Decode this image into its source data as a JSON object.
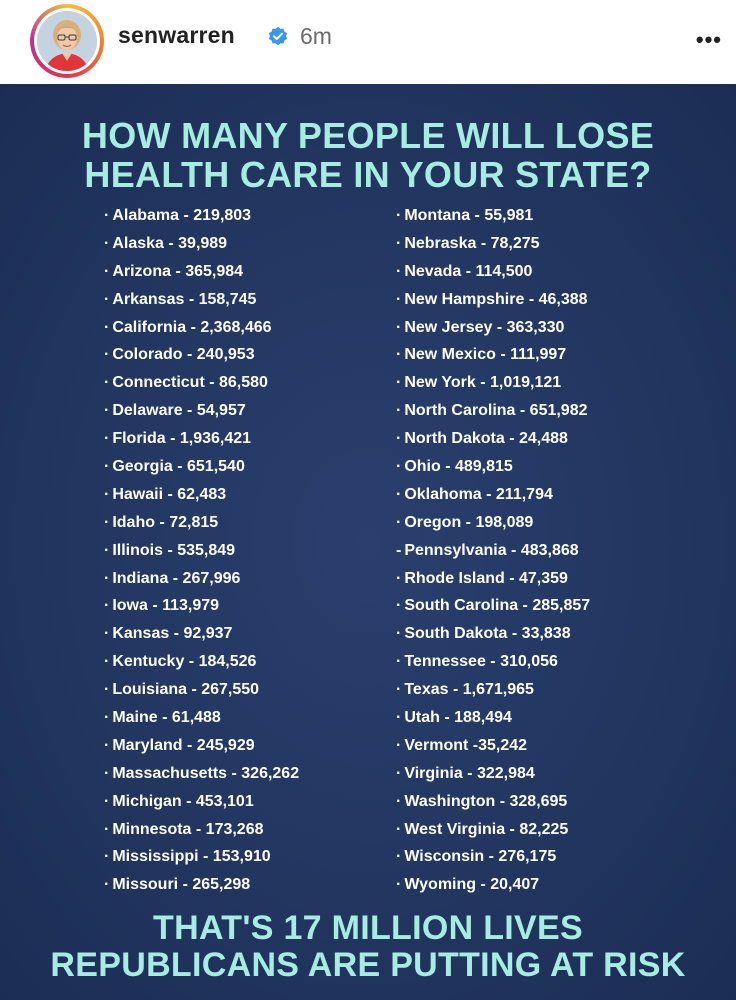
{
  "post": {
    "username": "senwarren",
    "time_ago": "6m",
    "more_label": "•••",
    "icons": {
      "avatar": "profile-photo",
      "verified": "verified-badge-icon",
      "more": "more-options-icon"
    }
  },
  "graphic": {
    "headline_line1": "HOW MANY PEOPLE WILL LOSE",
    "headline_line2": "HEALTH CARE IN YOUR STATE?",
    "footer_line1": "THAT'S 17 MILLION LIVES",
    "footer_line2": "REPUBLICANS ARE PUTTING AT RISK",
    "colors": {
      "background": "#223660",
      "accent_text": "#a7ece0",
      "list_text": "#ffffff"
    },
    "left_column": [
      "Alabama - 219,803",
      "Alaska - 39,989",
      "Arizona - 365,984",
      "Arkansas - 158,745",
      "California - 2,368,466",
      "Colorado - 240,953",
      "Connecticut - 86,580",
      "Delaware - 54,957",
      "Florida - 1,936,421",
      "Georgia - 651,540",
      "Hawaii - 62,483",
      "Idaho - 72,815",
      "Illinois - 535,849",
      "Indiana - 267,996",
      "Iowa - 113,979",
      "Kansas - 92,937",
      "Kentucky - 184,526",
      "Louisiana - 267,550",
      "Maine - 61,488",
      "Maryland - 245,929",
      "Massachusetts - 326,262",
      "Michigan - 453,101",
      "Minnesota - 173,268",
      "Mississippi - 153,910",
      "Missouri - 265,298"
    ],
    "right_column": [
      "Montana - 55,981",
      "Nebraska - 78,275",
      "Nevada - 114,500",
      "New Hampshire - 46,388",
      "New Jersey - 363,330",
      "New Mexico - 111,997",
      "New York - 1,019,121",
      "North Carolina - 651,982",
      "North Dakota - 24,488",
      "Ohio - 489,815",
      "Oklahoma - 211,794",
      "Oregon - 198,089",
      "Pennsylvania - 483,868",
      "Rhode Island - 47,359",
      "South Carolina - 285,857",
      "South Dakota - 33,838",
      "Tennessee - 310,056",
      "Texas - 1,671,965",
      "Utah - 188,494",
      "Vermont -35,242",
      "Virginia - 322,984",
      "Washington - 328,695",
      "West Virginia - 82,225",
      "Wisconsin - 276,175",
      "Wyoming - 20,407"
    ],
    "bullet_default": "·",
    "bullet_pennsylvania": "-"
  }
}
